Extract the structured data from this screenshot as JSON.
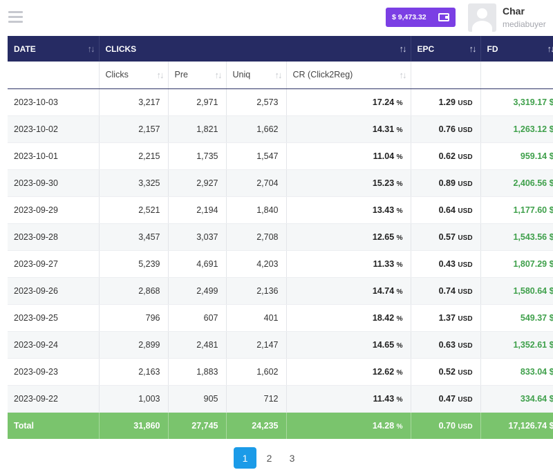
{
  "header": {
    "balance": "$ 9,473.32",
    "user_name": "Char",
    "user_role": "mediabuyer"
  },
  "table": {
    "group_headers": {
      "date": "DATE",
      "clicks": "CLICKS",
      "epc": "EPC",
      "fd": "FD"
    },
    "sub_headers": {
      "clicks": "Clicks",
      "pre": "Pre",
      "uniq": "Uniq",
      "cr": "CR (Click2Reg)"
    },
    "unit_percent": "%",
    "unit_usd": "USD",
    "rows": [
      {
        "date": "2023-10-03",
        "clicks": "3,217",
        "pre": "2,971",
        "uniq": "2,573",
        "cr": "17.24",
        "epc": "1.29",
        "fd": "3,319.17 $"
      },
      {
        "date": "2023-10-02",
        "clicks": "2,157",
        "pre": "1,821",
        "uniq": "1,662",
        "cr": "14.31",
        "epc": "0.76",
        "fd": "1,263.12 $"
      },
      {
        "date": "2023-10-01",
        "clicks": "2,215",
        "pre": "1,735",
        "uniq": "1,547",
        "cr": "11.04",
        "epc": "0.62",
        "fd": "959.14 $"
      },
      {
        "date": "2023-09-30",
        "clicks": "3,325",
        "pre": "2,927",
        "uniq": "2,704",
        "cr": "15.23",
        "epc": "0.89",
        "fd": "2,406.56 $"
      },
      {
        "date": "2023-09-29",
        "clicks": "2,521",
        "pre": "2,194",
        "uniq": "1,840",
        "cr": "13.43",
        "epc": "0.64",
        "fd": "1,177.60 $"
      },
      {
        "date": "2023-09-28",
        "clicks": "3,457",
        "pre": "3,037",
        "uniq": "2,708",
        "cr": "12.65",
        "epc": "0.57",
        "fd": "1,543.56 $"
      },
      {
        "date": "2023-09-27",
        "clicks": "5,239",
        "pre": "4,691",
        "uniq": "4,203",
        "cr": "11.33",
        "epc": "0.43",
        "fd": "1,807.29 $"
      },
      {
        "date": "2023-09-26",
        "clicks": "2,868",
        "pre": "2,499",
        "uniq": "2,136",
        "cr": "14.74",
        "epc": "0.74",
        "fd": "1,580.64 $"
      },
      {
        "date": "2023-09-25",
        "clicks": "796",
        "pre": "607",
        "uniq": "401",
        "cr": "18.42",
        "epc": "1.37",
        "fd": "549.37 $"
      },
      {
        "date": "2023-09-24",
        "clicks": "2,899",
        "pre": "2,481",
        "uniq": "2,147",
        "cr": "14.65",
        "epc": "0.63",
        "fd": "1,352.61 $"
      },
      {
        "date": "2023-09-23",
        "clicks": "2,163",
        "pre": "1,883",
        "uniq": "1,602",
        "cr": "12.62",
        "epc": "0.52",
        "fd": "833.04 $"
      },
      {
        "date": "2023-09-22",
        "clicks": "1,003",
        "pre": "905",
        "uniq": "712",
        "cr": "11.43",
        "epc": "0.47",
        "fd": "334.64 $"
      }
    ],
    "total": {
      "label": "Total",
      "clicks": "31,860",
      "pre": "27,745",
      "uniq": "24,235",
      "cr": "14.28",
      "epc": "0.70",
      "fd": "17,126.74 $"
    }
  },
  "pagination": {
    "pages": [
      "1",
      "2",
      "3"
    ],
    "active": "1"
  },
  "colors": {
    "header_bg": "#262b63",
    "balance_bg": "#7b3fe4",
    "total_bg": "#7ac46d",
    "fd_text": "#3fa04b",
    "page_active": "#1b9be8"
  }
}
